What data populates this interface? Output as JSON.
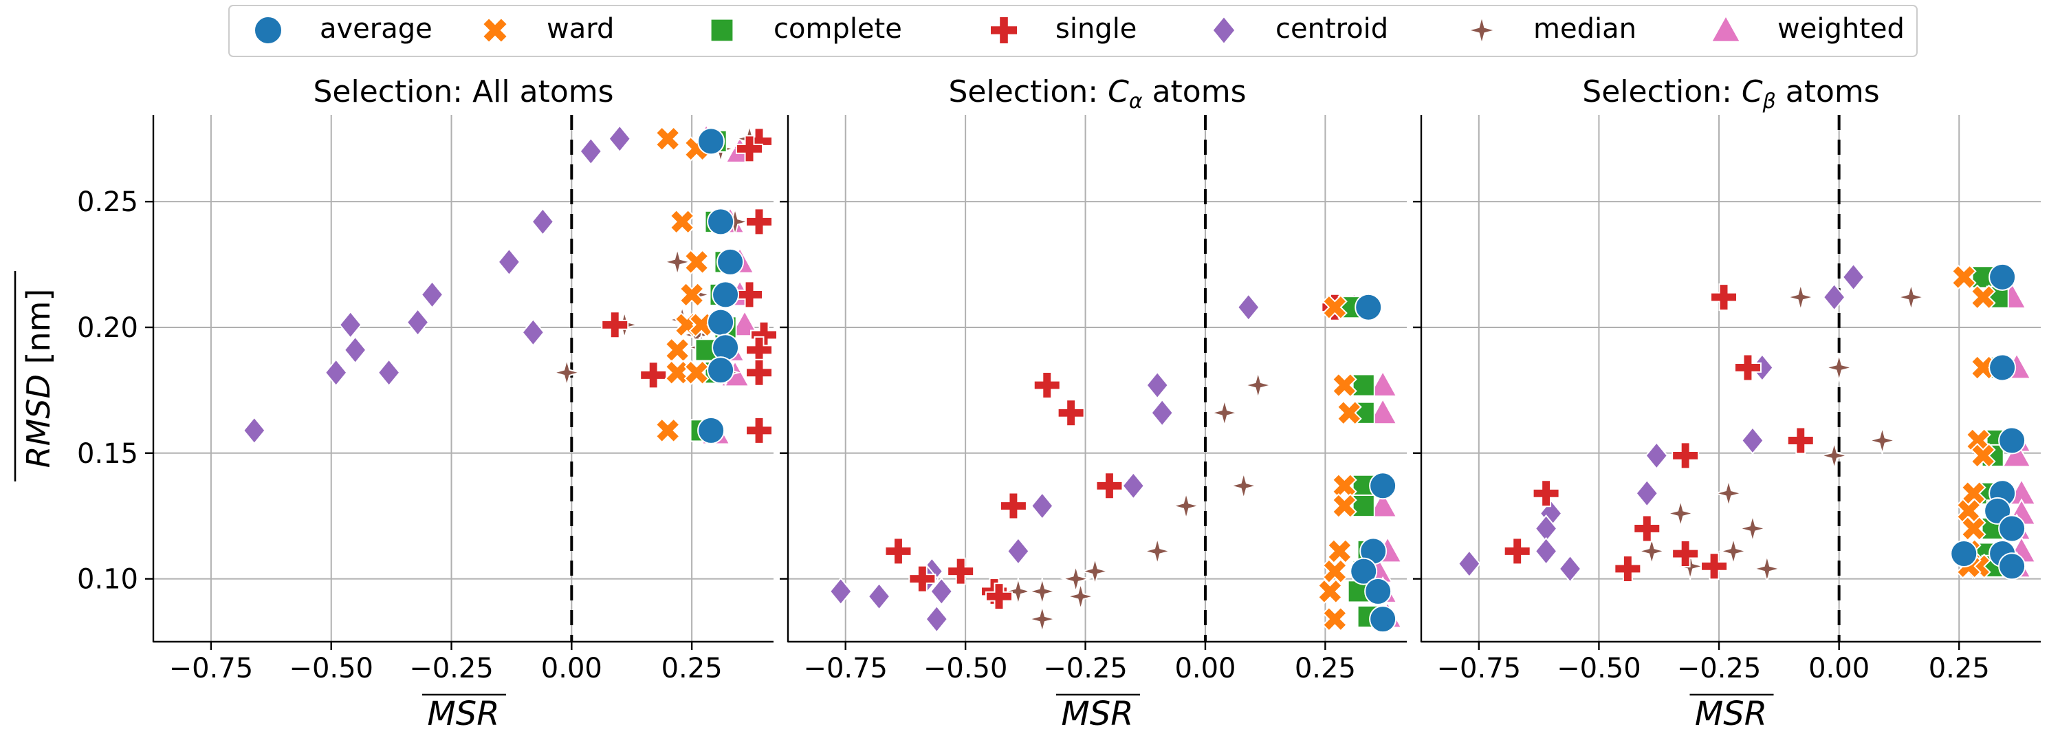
{
  "figure": {
    "ylabel_main": "RMSD",
    "ylabel_unit": " [nm]",
    "xlabel": "MSR"
  },
  "legend": [
    {
      "name": "average",
      "marker": "circle",
      "color": "#1f77b4"
    },
    {
      "name": "ward",
      "marker": "x",
      "color": "#ff7f0e"
    },
    {
      "name": "complete",
      "marker": "square",
      "color": "#2ca02c"
    },
    {
      "name": "single",
      "marker": "plus",
      "color": "#d62728"
    },
    {
      "name": "centroid",
      "marker": "diamond",
      "color": "#9467bd"
    },
    {
      "name": "median",
      "marker": "star4",
      "color": "#8c564b"
    },
    {
      "name": "weighted",
      "marker": "triangle",
      "color": "#e377c2"
    }
  ],
  "chart_data": [
    {
      "type": "scatter",
      "title_prefix": "Selection: ",
      "title_sym": "All",
      "title_sub": "",
      "title_suffix": " atoms",
      "xlabel": "MSR",
      "ylabel": "RMSD [nm]",
      "xlim": [
        -0.87,
        0.42
      ],
      "ylim": [
        0.075,
        0.2845
      ],
      "xticks": [
        -0.75,
        -0.5,
        -0.25,
        0.0,
        0.25
      ],
      "xtick_labels": [
        "−0.75",
        "−0.50",
        "−0.25",
        "0.00",
        "0.25"
      ],
      "yticks": [
        0.1,
        0.15,
        0.2,
        0.25
      ],
      "ytick_labels": [
        "0.10",
        "0.15",
        "0.20",
        "0.25"
      ],
      "vline": 0.0,
      "series": [
        {
          "name": "average",
          "points": [
            [
              0.29,
              0.274
            ],
            [
              0.31,
              0.242
            ],
            [
              0.33,
              0.226
            ],
            [
              0.32,
              0.213
            ],
            [
              0.31,
              0.202
            ],
            [
              0.32,
              0.192
            ],
            [
              0.31,
              0.183
            ],
            [
              0.29,
              0.159
            ]
          ]
        },
        {
          "name": "ward",
          "points": [
            [
              0.2,
              0.275
            ],
            [
              0.26,
              0.271
            ],
            [
              0.23,
              0.242
            ],
            [
              0.26,
              0.226
            ],
            [
              0.25,
              0.213
            ],
            [
              0.24,
              0.201
            ],
            [
              0.27,
              0.201
            ],
            [
              0.22,
              0.191
            ],
            [
              0.22,
              0.182
            ],
            [
              0.26,
              0.182
            ],
            [
              0.2,
              0.159
            ]
          ]
        },
        {
          "name": "complete",
          "points": [
            [
              0.3,
              0.274
            ],
            [
              0.3,
              0.242
            ],
            [
              0.32,
              0.226
            ],
            [
              0.31,
              0.213
            ],
            [
              0.32,
              0.2
            ],
            [
              0.28,
              0.191
            ],
            [
              0.3,
              0.182
            ],
            [
              0.27,
              0.159
            ]
          ]
        },
        {
          "name": "single",
          "points": [
            [
              0.39,
              0.274
            ],
            [
              0.37,
              0.271
            ],
            [
              0.39,
              0.242
            ],
            [
              0.37,
              0.213
            ],
            [
              0.4,
              0.197
            ],
            [
              0.39,
              0.191
            ],
            [
              0.39,
              0.182
            ],
            [
              0.09,
              0.201
            ],
            [
              0.17,
              0.181
            ],
            [
              0.39,
              0.159
            ]
          ]
        },
        {
          "name": "centroid",
          "points": [
            [
              0.04,
              0.27
            ],
            [
              0.1,
              0.275
            ],
            [
              -0.06,
              0.242
            ],
            [
              -0.13,
              0.226
            ],
            [
              -0.29,
              0.213
            ],
            [
              -0.32,
              0.202
            ],
            [
              -0.08,
              0.198
            ],
            [
              -0.46,
              0.201
            ],
            [
              -0.45,
              0.191
            ],
            [
              -0.49,
              0.182
            ],
            [
              -0.38,
              0.182
            ],
            [
              -0.66,
              0.159
            ]
          ]
        },
        {
          "name": "median",
          "points": [
            [
              0.37,
              0.275
            ],
            [
              0.31,
              0.271
            ],
            [
              0.34,
              0.242
            ],
            [
              0.22,
              0.226
            ],
            [
              0.26,
              0.213
            ],
            [
              0.23,
              0.203
            ],
            [
              0.26,
              0.197
            ],
            [
              0.11,
              0.201
            ],
            [
              0.27,
              0.192
            ],
            [
              0.3,
              0.183
            ],
            [
              -0.01,
              0.182
            ],
            [
              0.32,
              0.182
            ]
          ]
        },
        {
          "name": "weighted",
          "points": [
            [
              0.28,
              0.275
            ],
            [
              0.35,
              0.27
            ],
            [
              0.33,
              0.242
            ],
            [
              0.35,
              0.226
            ],
            [
              0.35,
              0.213
            ],
            [
              0.36,
              0.201
            ],
            [
              0.33,
              0.191
            ],
            [
              0.34,
              0.181
            ],
            [
              0.3,
              0.158
            ]
          ]
        }
      ]
    },
    {
      "type": "scatter",
      "title_prefix": "Selection: ",
      "title_sym": "C",
      "title_sub": "α",
      "title_suffix": " atoms",
      "xlabel": "MSR",
      "ylabel": "RMSD [nm]",
      "xlim": [
        -0.87,
        0.42
      ],
      "ylim": [
        0.075,
        0.2845
      ],
      "xticks": [
        -0.75,
        -0.5,
        -0.25,
        0.0,
        0.25
      ],
      "xtick_labels": [
        "−0.75",
        "−0.50",
        "−0.25",
        "0.00",
        "0.25"
      ],
      "yticks": [
        0.1,
        0.15,
        0.2,
        0.25
      ],
      "ytick_labels": [
        "0.10",
        "0.15",
        "0.20",
        "0.25"
      ],
      "vline": 0.0,
      "series": [
        {
          "name": "average",
          "points": [
            [
              0.34,
              0.208
            ],
            [
              0.37,
              0.137
            ],
            [
              0.35,
              0.111
            ],
            [
              0.33,
              0.103
            ],
            [
              0.36,
              0.095
            ],
            [
              0.37,
              0.084
            ]
          ]
        },
        {
          "name": "ward",
          "points": [
            [
              0.27,
              0.208
            ],
            [
              0.29,
              0.177
            ],
            [
              0.3,
              0.166
            ],
            [
              0.29,
              0.137
            ],
            [
              0.29,
              0.129
            ],
            [
              0.28,
              0.111
            ],
            [
              0.27,
              0.103
            ],
            [
              0.26,
              0.095
            ],
            [
              0.27,
              0.084
            ]
          ]
        },
        {
          "name": "complete",
          "points": [
            [
              0.3,
              0.208
            ],
            [
              0.33,
              0.177
            ],
            [
              0.33,
              0.166
            ],
            [
              0.33,
              0.137
            ],
            [
              0.33,
              0.129
            ],
            [
              0.34,
              0.111
            ],
            [
              0.33,
              0.103
            ],
            [
              0.32,
              0.095
            ],
            [
              0.34,
              0.085
            ]
          ]
        },
        {
          "name": "single",
          "points": [
            [
              0.27,
              0.208
            ],
            [
              -0.33,
              0.177
            ],
            [
              -0.28,
              0.166
            ],
            [
              -0.2,
              0.137
            ],
            [
              -0.4,
              0.129
            ],
            [
              -0.64,
              0.111
            ],
            [
              -0.51,
              0.103
            ],
            [
              -0.59,
              0.1
            ],
            [
              -0.44,
              0.095
            ],
            [
              -0.43,
              0.093
            ]
          ]
        },
        {
          "name": "centroid",
          "points": [
            [
              0.09,
              0.208
            ],
            [
              -0.1,
              0.177
            ],
            [
              -0.09,
              0.166
            ],
            [
              -0.15,
              0.137
            ],
            [
              -0.34,
              0.129
            ],
            [
              -0.39,
              0.111
            ],
            [
              -0.57,
              0.103
            ],
            [
              -0.58,
              0.1
            ],
            [
              -0.76,
              0.095
            ],
            [
              -0.55,
              0.095
            ],
            [
              -0.68,
              0.093
            ],
            [
              -0.56,
              0.084
            ]
          ]
        },
        {
          "name": "median",
          "points": [
            [
              0.28,
              0.208
            ],
            [
              0.11,
              0.177
            ],
            [
              0.04,
              0.166
            ],
            [
              0.08,
              0.137
            ],
            [
              -0.04,
              0.129
            ],
            [
              -0.1,
              0.111
            ],
            [
              -0.23,
              0.103
            ],
            [
              -0.27,
              0.1
            ],
            [
              -0.39,
              0.095
            ],
            [
              -0.34,
              0.095
            ],
            [
              -0.26,
              0.093
            ],
            [
              -0.34,
              0.084
            ]
          ]
        },
        {
          "name": "weighted",
          "points": [
            [
              0.31,
              0.208
            ],
            [
              0.37,
              0.177
            ],
            [
              0.37,
              0.166
            ],
            [
              0.36,
              0.137
            ],
            [
              0.37,
              0.129
            ],
            [
              0.38,
              0.111
            ],
            [
              0.36,
              0.103
            ],
            [
              0.37,
              0.095
            ],
            [
              0.38,
              0.085
            ]
          ]
        }
      ]
    },
    {
      "type": "scatter",
      "title_prefix": "Selection: ",
      "title_sym": "C",
      "title_sub": "β",
      "title_suffix": " atoms",
      "xlabel": "MSR",
      "ylabel": "RMSD [nm]",
      "xlim": [
        -0.87,
        0.42
      ],
      "ylim": [
        0.075,
        0.2845
      ],
      "xticks": [
        -0.75,
        -0.5,
        -0.25,
        0.0,
        0.25
      ],
      "xtick_labels": [
        "−0.75",
        "−0.50",
        "−0.25",
        "0.00",
        "0.25"
      ],
      "yticks": [
        0.1,
        0.15,
        0.2,
        0.25
      ],
      "ytick_labels": [
        "0.10",
        "0.15",
        "0.20",
        "0.25"
      ],
      "vline": 0.0,
      "series": [
        {
          "name": "average",
          "points": [
            [
              0.34,
              0.22
            ],
            [
              0.34,
              0.184
            ],
            [
              0.36,
              0.155
            ],
            [
              0.34,
              0.134
            ],
            [
              0.33,
              0.127
            ],
            [
              0.36,
              0.12
            ],
            [
              0.26,
              0.11
            ],
            [
              0.34,
              0.11
            ],
            [
              0.36,
              0.105
            ]
          ]
        },
        {
          "name": "ward",
          "points": [
            [
              0.26,
              0.22
            ],
            [
              0.3,
              0.212
            ],
            [
              0.3,
              0.184
            ],
            [
              0.29,
              0.155
            ],
            [
              0.3,
              0.149
            ],
            [
              0.28,
              0.134
            ],
            [
              0.27,
              0.127
            ],
            [
              0.28,
              0.12
            ],
            [
              0.27,
              0.111
            ],
            [
              0.29,
              0.105
            ],
            [
              0.27,
              0.105
            ]
          ]
        },
        {
          "name": "complete",
          "points": [
            [
              0.3,
              0.22
            ],
            [
              0.33,
              0.212
            ],
            [
              0.33,
              0.184
            ],
            [
              0.33,
              0.155
            ],
            [
              0.32,
              0.149
            ],
            [
              0.31,
              0.134
            ],
            [
              0.33,
              0.127
            ],
            [
              0.32,
              0.12
            ],
            [
              0.3,
              0.11
            ],
            [
              0.32,
              0.105
            ]
          ]
        },
        {
          "name": "single",
          "points": [
            [
              -0.24,
              0.212
            ],
            [
              -0.19,
              0.184
            ],
            [
              -0.08,
              0.155
            ],
            [
              -0.32,
              0.149
            ],
            [
              -0.61,
              0.134
            ],
            [
              -0.4,
              0.12
            ],
            [
              -0.67,
              0.111
            ],
            [
              -0.32,
              0.11
            ],
            [
              -0.44,
              0.104
            ],
            [
              -0.26,
              0.105
            ]
          ]
        },
        {
          "name": "centroid",
          "points": [
            [
              0.03,
              0.22
            ],
            [
              -0.01,
              0.212
            ],
            [
              -0.16,
              0.184
            ],
            [
              -0.18,
              0.155
            ],
            [
              -0.38,
              0.149
            ],
            [
              -0.4,
              0.134
            ],
            [
              -0.6,
              0.126
            ],
            [
              -0.61,
              0.12
            ],
            [
              -0.61,
              0.111
            ],
            [
              -0.77,
              0.106
            ],
            [
              -0.56,
              0.104
            ]
          ]
        },
        {
          "name": "median",
          "points": [
            [
              0.15,
              0.212
            ],
            [
              -0.08,
              0.212
            ],
            [
              0.0,
              0.184
            ],
            [
              0.09,
              0.155
            ],
            [
              -0.01,
              0.149
            ],
            [
              -0.23,
              0.134
            ],
            [
              -0.33,
              0.126
            ],
            [
              -0.18,
              0.12
            ],
            [
              -0.22,
              0.111
            ],
            [
              -0.39,
              0.111
            ],
            [
              -0.31,
              0.105
            ],
            [
              -0.15,
              0.104
            ]
          ]
        },
        {
          "name": "weighted",
          "points": [
            [
              0.33,
              0.22
            ],
            [
              0.36,
              0.212
            ],
            [
              0.37,
              0.184
            ],
            [
              0.37,
              0.155
            ],
            [
              0.37,
              0.149
            ],
            [
              0.38,
              0.134
            ],
            [
              0.38,
              0.126
            ],
            [
              0.37,
              0.12
            ],
            [
              0.38,
              0.111
            ],
            [
              0.37,
              0.105
            ]
          ]
        }
      ]
    }
  ]
}
